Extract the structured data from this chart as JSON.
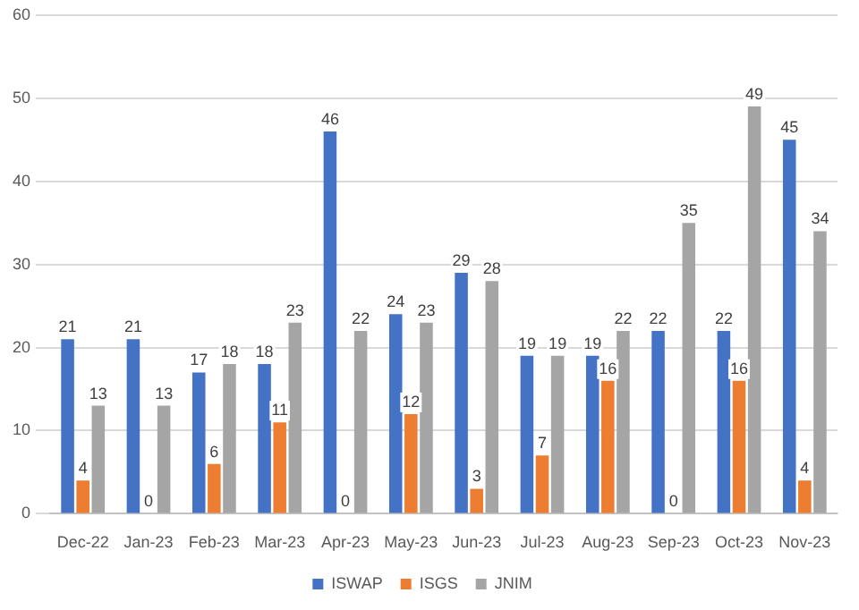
{
  "chart_data": {
    "type": "bar",
    "categories": [
      "Dec-22",
      "Jan-23",
      "Feb-23",
      "Mar-23",
      "Apr-23",
      "May-23",
      "Jun-23",
      "Jul-23",
      "Aug-23",
      "Sep-23",
      "Oct-23",
      "Nov-23"
    ],
    "series": [
      {
        "name": "ISWAP",
        "color": "#4472c4",
        "values": [
          21,
          21,
          17,
          18,
          46,
          24,
          29,
          19,
          19,
          22,
          22,
          45
        ]
      },
      {
        "name": "ISGS",
        "color": "#ed7d31",
        "values": [
          4,
          0,
          6,
          11,
          0,
          12,
          3,
          7,
          16,
          0,
          16,
          4
        ]
      },
      {
        "name": "JNIM",
        "color": "#a5a5a5",
        "values": [
          13,
          13,
          18,
          23,
          22,
          23,
          28,
          19,
          22,
          35,
          49,
          34
        ]
      }
    ],
    "ylim": [
      0,
      60
    ],
    "yticks": [
      0,
      10,
      20,
      30,
      40,
      50,
      60
    ],
    "grid": "y",
    "legend": "bottom",
    "data_labels": true
  }
}
